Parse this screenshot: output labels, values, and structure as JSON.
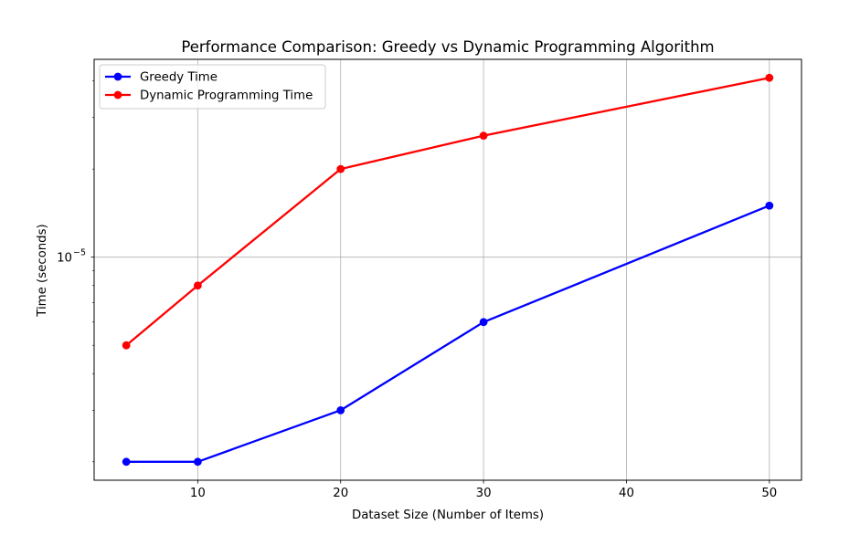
{
  "chart_data": {
    "type": "line",
    "title": "Performance Comparison: Greedy vs Dynamic Programming Algorithm",
    "xlabel": "Dataset Size (Number of Items)",
    "ylabel": "Time (seconds)",
    "x": [
      5,
      10,
      20,
      30,
      50
    ],
    "series": [
      {
        "name": "Greedy Time",
        "color": "#0000ff",
        "values": [
          2e-06,
          2e-06,
          3e-06,
          6e-06,
          1.5e-05
        ]
      },
      {
        "name": "Dynamic Programming Time",
        "color": "#ff0000",
        "values": [
          5e-06,
          8e-06,
          2e-05,
          2.6e-05,
          4.1e-05
        ]
      }
    ],
    "xlim": [
      2.75,
      52.25
    ],
    "ylim": [
      1.73e-06,
      4.74e-05
    ],
    "yscale": "log",
    "xticks": [
      "10",
      "20",
      "30",
      "40",
      "50"
    ],
    "yticks_major": [
      {
        "value": 1e-05,
        "base": "10",
        "exponent": "−5"
      }
    ],
    "grid": true,
    "legend_position": "upper left"
  }
}
